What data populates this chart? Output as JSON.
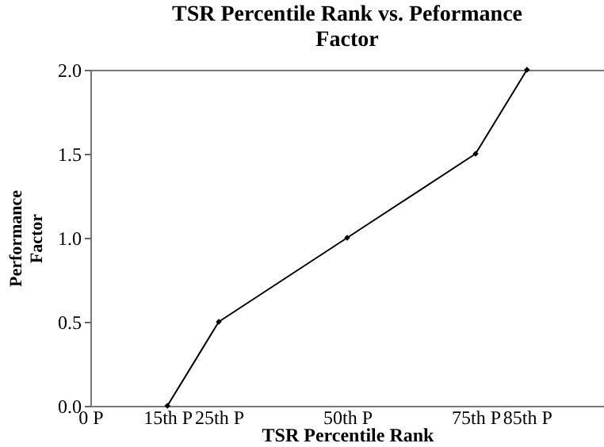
{
  "chart_data": {
    "type": "line",
    "title": "TSR Percentile Rank  vs.  Peformance\nFactor",
    "xlabel": "TSR Percentile Rank",
    "ylabel": "Performance\nFactor",
    "x": [
      15,
      25,
      50,
      75,
      85
    ],
    "series": [
      {
        "color": "#000000",
        "values": [
          0,
          0.5,
          1.0,
          1.5,
          2.0
        ]
      }
    ],
    "xlim": [
      0,
      100
    ],
    "xticks": [
      {
        "value": 0,
        "label": "0 P"
      },
      {
        "value": 15,
        "label": "15th P"
      },
      {
        "value": 25,
        "label": "25th P"
      },
      {
        "value": 50,
        "label": "50th P"
      },
      {
        "value": 75,
        "label": "75th P"
      },
      {
        "value": 85,
        "label": "85th P"
      }
    ],
    "ylim": [
      0,
      2
    ],
    "yticks": [
      {
        "value": 0,
        "label": "0.0"
      },
      {
        "value": 0.5,
        "label": "0.5"
      },
      {
        "value": 1,
        "label": "1.0"
      },
      {
        "value": 1.5,
        "label": "1.5"
      },
      {
        "value": 2,
        "label": "2.0"
      }
    ],
    "grid": false,
    "legend": false,
    "marker": "diamond",
    "line_style": "solid"
  }
}
